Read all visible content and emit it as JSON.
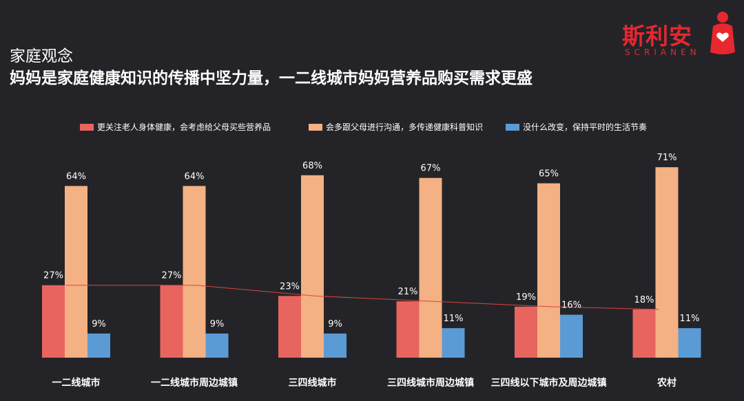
{
  "header": {
    "title_line1": "家庭观念",
    "title_line2": "妈妈是家庭健康知识的传播中坚力量，一二线城市妈妈营养品购买需求更盛"
  },
  "logo": {
    "name": "斯利安",
    "subtitle": "SCRIANEN",
    "color": "#e8272f"
  },
  "chart_data": {
    "type": "bar",
    "categories": [
      "一二线城市",
      "一二线城市周边城镇",
      "三四线城市",
      "三四线城市周边城镇",
      "三四线以下城市及周边城镇",
      "农村"
    ],
    "series": [
      {
        "name": "更关注老人身体健康，会考虑给父母买些营养品",
        "color": "#e8655f",
        "values": [
          27,
          27,
          23,
          21,
          19,
          18
        ]
      },
      {
        "name": "会多跟父母进行沟通，多传递健康科普知识",
        "color": "#f4b183",
        "values": [
          64,
          64,
          68,
          67,
          65,
          71
        ]
      },
      {
        "name": "没什么改变，保持平时的生活节奏",
        "color": "#5b9bd5",
        "values": [
          9,
          9,
          9,
          11,
          16,
          11
        ]
      }
    ],
    "value_suffix": "%",
    "trendline_series": 0,
    "ylim": [
      0,
      80
    ],
    "legend_position": "top",
    "grid": false
  }
}
